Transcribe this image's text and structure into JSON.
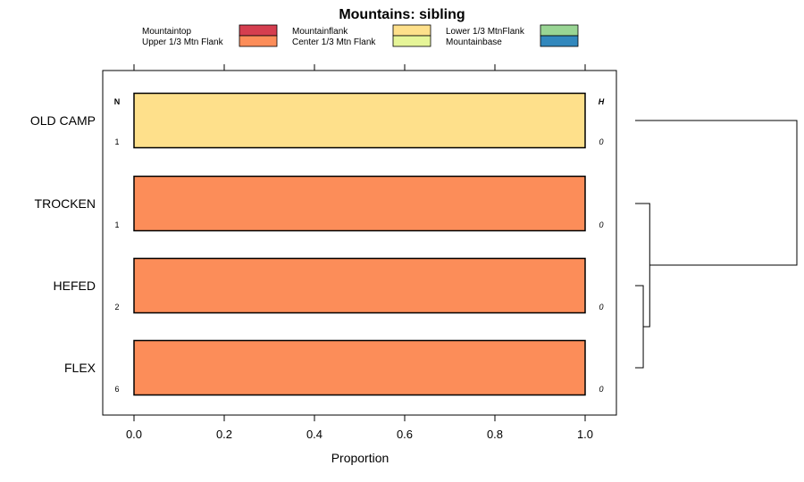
{
  "chart_data": {
    "type": "bar",
    "orientation": "horizontal",
    "stacked": true,
    "title": "Mountains: sibling",
    "xlabel": "Proportion",
    "ylabel": "",
    "xlim": [
      0,
      1
    ],
    "x_ticks": [
      "0.0",
      "0.2",
      "0.4",
      "0.6",
      "0.8",
      "1.0"
    ],
    "x_tick_values": [
      0.0,
      0.2,
      0.4,
      0.6,
      0.8,
      1.0
    ],
    "n_header": "N",
    "h_header": "H",
    "legend": {
      "position": "top",
      "entries": [
        {
          "label": "Mountaintop",
          "color": "#d53e4f"
        },
        {
          "label": "Upper 1/3 Mtn Flank",
          "color": "#fc8d59"
        },
        {
          "label": "Mountainflank",
          "color": "#fee08b"
        },
        {
          "label": "Center 1/3 Mtn Flank",
          "color": "#e6f598"
        },
        {
          "label": "Lower 1/3 MtnFlank",
          "color": "#99d594"
        },
        {
          "label": "Mountainbase",
          "color": "#3288bd"
        }
      ]
    },
    "categories": [
      "OLD CAMP",
      "TROCKEN",
      "HEFED",
      "FLEX"
    ],
    "n_values": [
      "1",
      "1",
      "2",
      "6"
    ],
    "h_values": [
      "0",
      "0",
      "0",
      "0"
    ],
    "series": [
      {
        "name": "Mountaintop",
        "color": "#d53e4f",
        "values": [
          0,
          0,
          0,
          0
        ]
      },
      {
        "name": "Upper 1/3 Mtn Flank",
        "color": "#fc8d59",
        "values": [
          0,
          1,
          1,
          1
        ]
      },
      {
        "name": "Mountainflank",
        "color": "#fee08b",
        "values": [
          1,
          0,
          0,
          0
        ]
      },
      {
        "name": "Center 1/3 Mtn Flank",
        "color": "#e6f598",
        "values": [
          0,
          0,
          0,
          0
        ]
      },
      {
        "name": "Lower 1/3 MtnFlank",
        "color": "#99d594",
        "values": [
          0,
          0,
          0,
          0
        ]
      },
      {
        "name": "Mountainbase",
        "color": "#3288bd",
        "values": [
          0,
          0,
          0,
          0
        ]
      }
    ],
    "dendrogram": {
      "leaves": [
        "OLD CAMP",
        "TROCKEN",
        "HEFED",
        "FLEX"
      ],
      "merges": [
        {
          "left": "HEFED",
          "right": "FLEX",
          "height": 0.05
        },
        {
          "left": "TROCKEN",
          "right": "HEFED+FLEX",
          "height": 0.09
        },
        {
          "left": "OLD CAMP",
          "right": "TROCKEN+HEFED+FLEX",
          "height": 1.0
        }
      ]
    }
  }
}
